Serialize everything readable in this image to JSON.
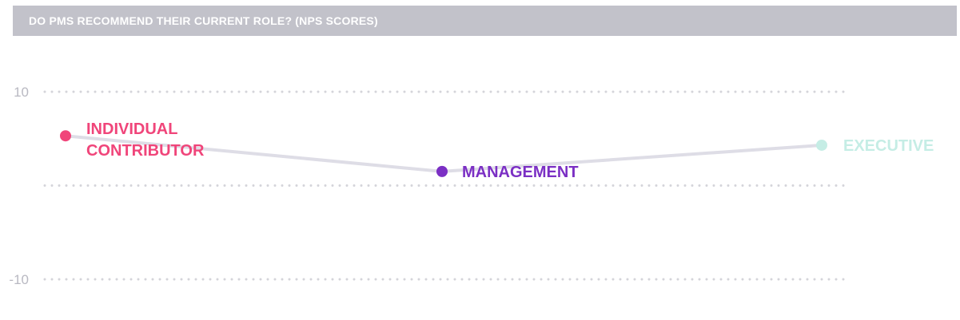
{
  "header": {
    "title": "DO PMS RECOMMEND THEIR CURRENT ROLE? (NPS SCORES)"
  },
  "colors": {
    "header_bg": "#c2c2ca",
    "grid": "#d4d4da",
    "line": "#dedde6",
    "tick_text": "#b9b9c2"
  },
  "chart_data": {
    "type": "line",
    "title": "DO PMS RECOMMEND THEIR CURRENT ROLE? (NPS SCORES)",
    "xlabel": "",
    "ylabel": "",
    "ylim": [
      -10,
      10
    ],
    "yticks": [
      10,
      0,
      -10
    ],
    "ytick_labels": [
      "10",
      "",
      "-10"
    ],
    "grid": true,
    "points": [
      {
        "label_lines": [
          "INDIVIDUAL",
          "CONTRIBUTOR"
        ],
        "value": 5.3,
        "color": "#f0457a"
      },
      {
        "label_lines": [
          "MANAGEMENT"
        ],
        "value": 1.5,
        "color": "#7b2fc4"
      },
      {
        "label_lines": [
          "EXECUTIVE"
        ],
        "value": 4.3,
        "color": "#c5ede5"
      }
    ]
  }
}
